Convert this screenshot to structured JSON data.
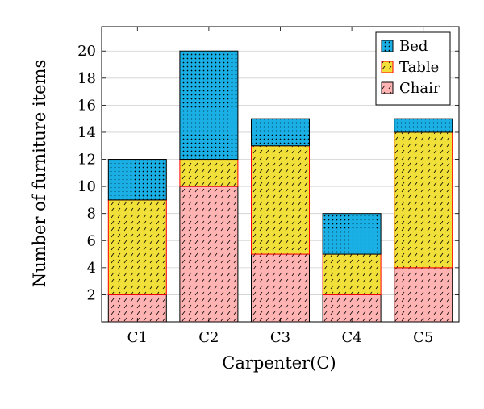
{
  "chart_data": {
    "type": "bar",
    "stacked": true,
    "categories": [
      "C1",
      "C2",
      "C3",
      "C4",
      "C5"
    ],
    "series": [
      {
        "name": "Chair",
        "values": [
          2,
          10,
          5,
          2,
          4
        ],
        "fill": "#ffb3b3",
        "stroke": "#000000",
        "pattern": "diagonal-dashes"
      },
      {
        "name": "Table",
        "values": [
          7,
          2,
          8,
          3,
          10
        ],
        "fill": "#f2e03a",
        "stroke": "#ff0000",
        "pattern": "diagonal-dashes"
      },
      {
        "name": "Bed",
        "values": [
          3,
          8,
          2,
          3,
          1
        ],
        "fill": "#1ab0e6",
        "stroke": "#000000",
        "pattern": "dots"
      }
    ],
    "xlabel": "Carpenter(C)",
    "ylabel": "Number of furniture items",
    "ylim": [
      0,
      21.8
    ],
    "yticks": [
      2,
      4,
      6,
      8,
      10,
      12,
      14,
      16,
      18,
      20
    ],
    "grid": "horizontal",
    "legend": {
      "placement": "top-right",
      "order": [
        "Bed",
        "Table",
        "Chair"
      ]
    }
  }
}
